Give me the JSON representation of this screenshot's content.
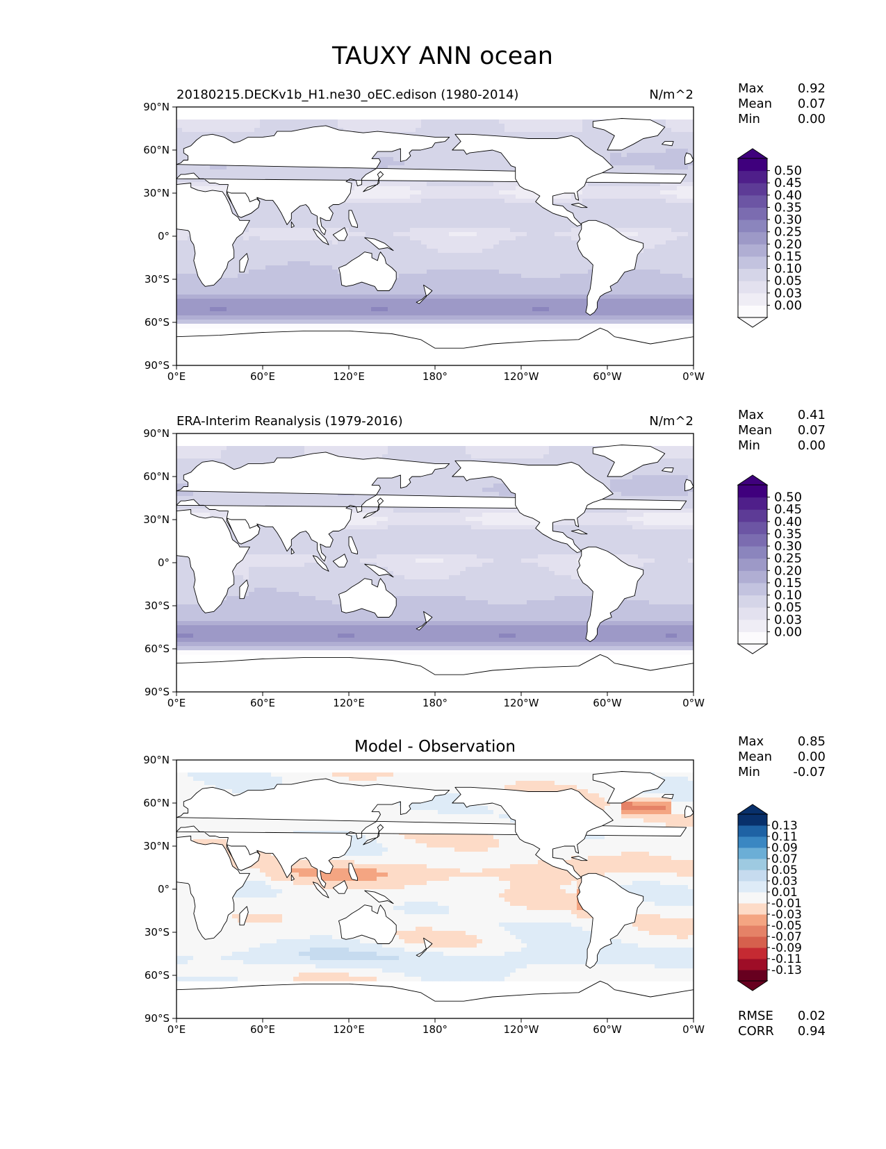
{
  "figure": {
    "title": "TAUXY ANN ocean"
  },
  "colors": {
    "seq": [
      "#fcfbfd",
      "#efedf5",
      "#e3e1ef",
      "#d5d5e8",
      "#c3c3df",
      "#b0aed3",
      "#9d99c7",
      "#8b85bd",
      "#7b6cb0",
      "#6c55a4",
      "#5d3b96",
      "#4f1f8a",
      "#3f007d"
    ],
    "div": [
      "#67001f",
      "#9e0d27",
      "#c52a32",
      "#d6604d",
      "#e58267",
      "#f4a582",
      "#fddbc7",
      "#f7f7f7",
      "#deebf7",
      "#c6dbef",
      "#9ecae1",
      "#6baed6",
      "#3a87c2",
      "#1e62a4",
      "#08306b"
    ],
    "land": "#ffffff",
    "coast": "#000000"
  },
  "panels": [
    {
      "title": "20180215.DECKv1b_H1.ne30_oEC.edison (1980-2014)",
      "units": "N/m^2",
      "stats": [
        {
          "label": "Max",
          "value": "0.92"
        },
        {
          "label": "Mean",
          "value": "0.07"
        },
        {
          "label": "Min",
          "value": "0.00"
        }
      ],
      "colorbar": [
        "0.00",
        "0.03",
        "0.05",
        "0.10",
        "0.15",
        "0.20",
        "0.25",
        "0.30",
        "0.35",
        "0.40",
        "0.45",
        "0.50"
      ],
      "palette": "seq"
    },
    {
      "title": "ERA-Interim Reanalysis (1979-2016)",
      "units": "N/m^2",
      "stats": [
        {
          "label": "Max",
          "value": "0.41"
        },
        {
          "label": "Mean",
          "value": "0.07"
        },
        {
          "label": "Min",
          "value": "0.00"
        }
      ],
      "colorbar": [
        "0.00",
        "0.03",
        "0.05",
        "0.10",
        "0.15",
        "0.20",
        "0.25",
        "0.30",
        "0.35",
        "0.40",
        "0.45",
        "0.50"
      ],
      "palette": "seq"
    },
    {
      "title": "Model - Observation",
      "units": "",
      "stats": [
        {
          "label": "Max",
          "value": "0.85"
        },
        {
          "label": "Mean",
          "value": "0.00"
        },
        {
          "label": "Min",
          "value": "-0.07"
        }
      ],
      "colorbar": [
        "-0.13",
        "-0.11",
        "-0.09",
        "-0.07",
        "-0.05",
        "-0.03",
        "-0.01",
        "0.01",
        "0.03",
        "0.05",
        "0.07",
        "0.09",
        "0.11",
        "0.13"
      ],
      "palette": "div",
      "metrics": [
        {
          "label": "RMSE",
          "value": "0.02"
        },
        {
          "label": "CORR",
          "value": "0.94"
        }
      ]
    }
  ],
  "axes": {
    "x_ticks": [
      "0°E",
      "60°E",
      "120°E",
      "180°",
      "120°W",
      "60°W",
      "0°W"
    ],
    "y_ticks": [
      "90°N",
      "60°N",
      "30°N",
      "0°",
      "30°S",
      "60°S",
      "90°S"
    ]
  },
  "chart_data": [
    {
      "type": "heatmap",
      "title": "20180215.DECKv1b_H1.ne30_oEC.edison (1980-2014)",
      "units": "N/m^2",
      "xlim": [
        0,
        360
      ],
      "ylim": [
        -90,
        90
      ],
      "x_tick_labels": [
        "0°E",
        "60°E",
        "120°E",
        "180°",
        "120°W",
        "60°W",
        "0°W"
      ],
      "y_tick_labels": [
        "90°N",
        "60°N",
        "30°N",
        "0°",
        "30°S",
        "60°S",
        "90°S"
      ],
      "levels": [
        0.0,
        0.03,
        0.05,
        0.1,
        0.15,
        0.2,
        0.25,
        0.3,
        0.35,
        0.4,
        0.45,
        0.5
      ],
      "stats": {
        "max": 0.92,
        "mean": 0.07,
        "min": 0.0
      }
    },
    {
      "type": "heatmap",
      "title": "ERA-Interim Reanalysis (1979-2016)",
      "units": "N/m^2",
      "xlim": [
        0,
        360
      ],
      "ylim": [
        -90,
        90
      ],
      "x_tick_labels": [
        "0°E",
        "60°E",
        "120°E",
        "180°",
        "120°W",
        "60°W",
        "0°W"
      ],
      "y_tick_labels": [
        "90°N",
        "60°N",
        "30°N",
        "0°",
        "30°S",
        "60°S",
        "90°S"
      ],
      "levels": [
        0.0,
        0.03,
        0.05,
        0.1,
        0.15,
        0.2,
        0.25,
        0.3,
        0.35,
        0.4,
        0.45,
        0.5
      ],
      "stats": {
        "max": 0.41,
        "mean": 0.07,
        "min": 0.0
      }
    },
    {
      "type": "heatmap",
      "title": "Model - Observation",
      "xlim": [
        0,
        360
      ],
      "ylim": [
        -90,
        90
      ],
      "x_tick_labels": [
        "0°E",
        "60°E",
        "120°E",
        "180°",
        "120°W",
        "60°W",
        "0°W"
      ],
      "y_tick_labels": [
        "90°N",
        "60°N",
        "30°N",
        "0°",
        "30°S",
        "60°S",
        "90°S"
      ],
      "levels": [
        -0.13,
        -0.11,
        -0.09,
        -0.07,
        -0.05,
        -0.03,
        -0.01,
        0.01,
        0.03,
        0.05,
        0.07,
        0.09,
        0.11,
        0.13
      ],
      "stats": {
        "max": 0.85,
        "mean": 0.0,
        "min": -0.07,
        "rmse": 0.02,
        "corr": 0.94
      }
    }
  ]
}
